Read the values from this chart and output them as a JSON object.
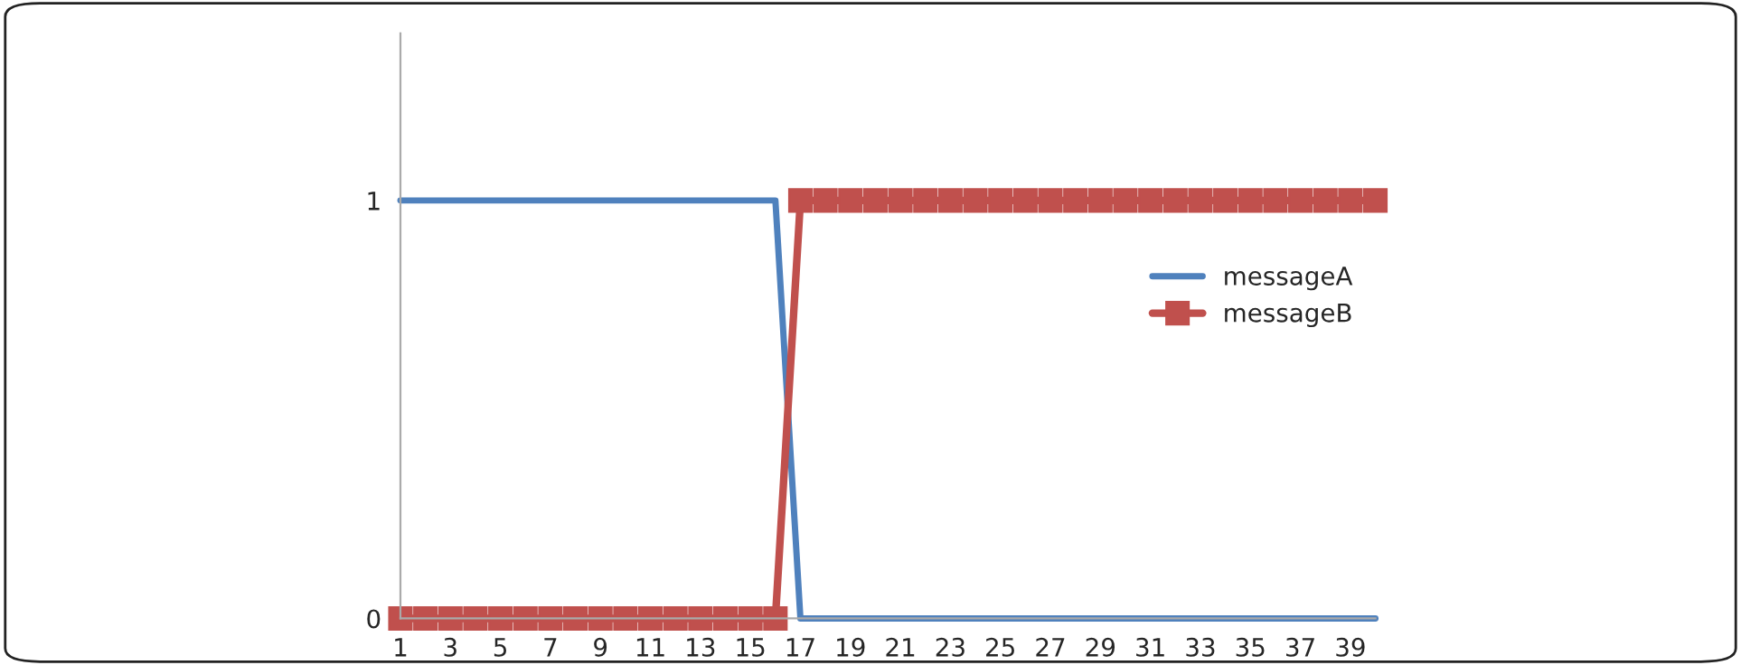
{
  "chart_data": {
    "type": "line",
    "categories": [
      "1",
      null,
      "3",
      null,
      "5",
      null,
      "7",
      null,
      "9",
      null,
      "11",
      null,
      "13",
      null,
      "15",
      null,
      "17",
      null,
      "19",
      null,
      "21",
      null,
      "23",
      null,
      "25",
      null,
      "27",
      null,
      "29",
      null,
      "31",
      null,
      "33",
      null,
      "35",
      null,
      "37",
      null,
      "39",
      null
    ],
    "series": [
      {
        "name": "messageA",
        "color": "#4f81bd",
        "marker": "none",
        "values": [
          1,
          1,
          1,
          1,
          1,
          1,
          1,
          1,
          1,
          1,
          1,
          1,
          1,
          1,
          1,
          1,
          0,
          0,
          0,
          0,
          0,
          0,
          0,
          0,
          0,
          0,
          0,
          0,
          0,
          0,
          0,
          0,
          0,
          0,
          0,
          0,
          0,
          0,
          0,
          0
        ]
      },
      {
        "name": "messageB",
        "color": "#c0504d",
        "marker": "square",
        "values": [
          0,
          0,
          0,
          0,
          0,
          0,
          0,
          0,
          0,
          0,
          0,
          0,
          0,
          0,
          0,
          0,
          1,
          1,
          1,
          1,
          1,
          1,
          1,
          1,
          1,
          1,
          1,
          1,
          1,
          1,
          1,
          1,
          1,
          1,
          1,
          1,
          1,
          1,
          1,
          1
        ]
      }
    ],
    "ylim": [
      0,
      1.4
    ],
    "yticks": [
      0,
      1
    ],
    "grid": false,
    "legend": "right"
  }
}
